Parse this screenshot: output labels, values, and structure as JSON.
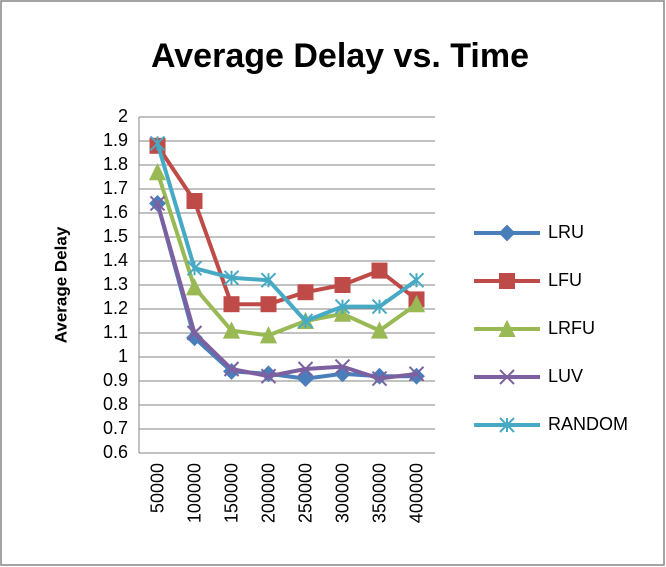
{
  "chart_data": {
    "type": "line",
    "title": "Average Delay vs. Time",
    "y_label": "Average Delay",
    "categories": [
      "50000",
      "100000",
      "150000",
      "200000",
      "250000",
      "300000",
      "350000",
      "400000"
    ],
    "series": [
      {
        "name": "LRU",
        "color": "#4a7ebb",
        "marker": "diamond",
        "values": [
          1.64,
          1.08,
          0.94,
          0.93,
          0.91,
          0.93,
          0.92,
          0.92
        ]
      },
      {
        "name": "LFU",
        "color": "#be4b48",
        "marker": "square",
        "values": [
          1.88,
          1.65,
          1.22,
          1.22,
          1.27,
          1.3,
          1.36,
          1.24
        ]
      },
      {
        "name": "LRFU",
        "color": "#98b954",
        "marker": "triangle",
        "values": [
          1.77,
          1.29,
          1.11,
          1.09,
          1.15,
          1.18,
          1.11,
          1.22
        ]
      },
      {
        "name": "LUV",
        "color": "#7d60a0",
        "marker": "x",
        "values": [
          1.64,
          1.1,
          0.95,
          0.92,
          0.95,
          0.96,
          0.91,
          0.93
        ]
      },
      {
        "name": "RANDOM",
        "color": "#46aac5",
        "marker": "star",
        "values": [
          1.89,
          1.37,
          1.33,
          1.32,
          1.15,
          1.21,
          1.21,
          1.32
        ]
      }
    ],
    "ylim": [
      0.6,
      2
    ],
    "yticks": [
      0.6,
      0.7,
      0.8,
      0.9,
      1,
      1.1,
      1.2,
      1.3,
      1.4,
      1.5,
      1.6,
      1.7,
      1.8,
      1.9,
      2
    ],
    "grid": true,
    "legend": "right"
  }
}
